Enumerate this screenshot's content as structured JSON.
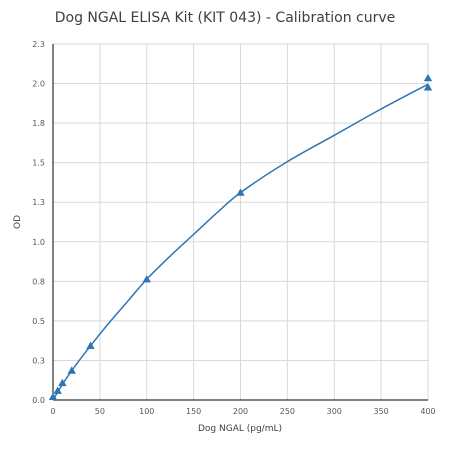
{
  "chart_data": {
    "type": "scatter",
    "title": "Dog NGAL ELISA Kit (KIT 043) - Calibration curve",
    "xlabel": "Dog NGAL (pg/mL)",
    "ylabel": "OD",
    "xlim": [
      0,
      400
    ],
    "ylim": [
      0,
      2.3
    ],
    "x_ticks": [
      "0",
      "50",
      "100",
      "150",
      "200",
      "250",
      "300",
      "350",
      "400"
    ],
    "y_ticks": [
      "0.0",
      "0.3",
      "0.5",
      "0.8",
      "1.0",
      "1.3",
      "1.5",
      "1.8",
      "2.0",
      "2.3"
    ],
    "grid": true,
    "legend": "none",
    "marker_color": "#2E75B6",
    "line_color": "#2E75B6",
    "grid_color": "#D9D9D9",
    "points": [
      {
        "x": 0,
        "y": 0.02
      },
      {
        "x": 5,
        "y": 0.06
      },
      {
        "x": 10,
        "y": 0.11
      },
      {
        "x": 20,
        "y": 0.19
      },
      {
        "x": 40,
        "y": 0.35
      },
      {
        "x": 100,
        "y": 0.78
      },
      {
        "x": 200,
        "y": 1.34
      },
      {
        "x": 400,
        "y": 2.02
      },
      {
        "x": 400,
        "y": 2.08
      }
    ],
    "curve": [
      {
        "x": 0,
        "y": 0.0
      },
      {
        "x": 10,
        "y": 0.1
      },
      {
        "x": 20,
        "y": 0.19
      },
      {
        "x": 40,
        "y": 0.35
      },
      {
        "x": 60,
        "y": 0.5
      },
      {
        "x": 80,
        "y": 0.64
      },
      {
        "x": 100,
        "y": 0.78
      },
      {
        "x": 125,
        "y": 0.93
      },
      {
        "x": 150,
        "y": 1.07
      },
      {
        "x": 175,
        "y": 1.21
      },
      {
        "x": 200,
        "y": 1.34
      },
      {
        "x": 250,
        "y": 1.54
      },
      {
        "x": 300,
        "y": 1.71
      },
      {
        "x": 350,
        "y": 1.88
      },
      {
        "x": 400,
        "y": 2.04
      }
    ]
  }
}
